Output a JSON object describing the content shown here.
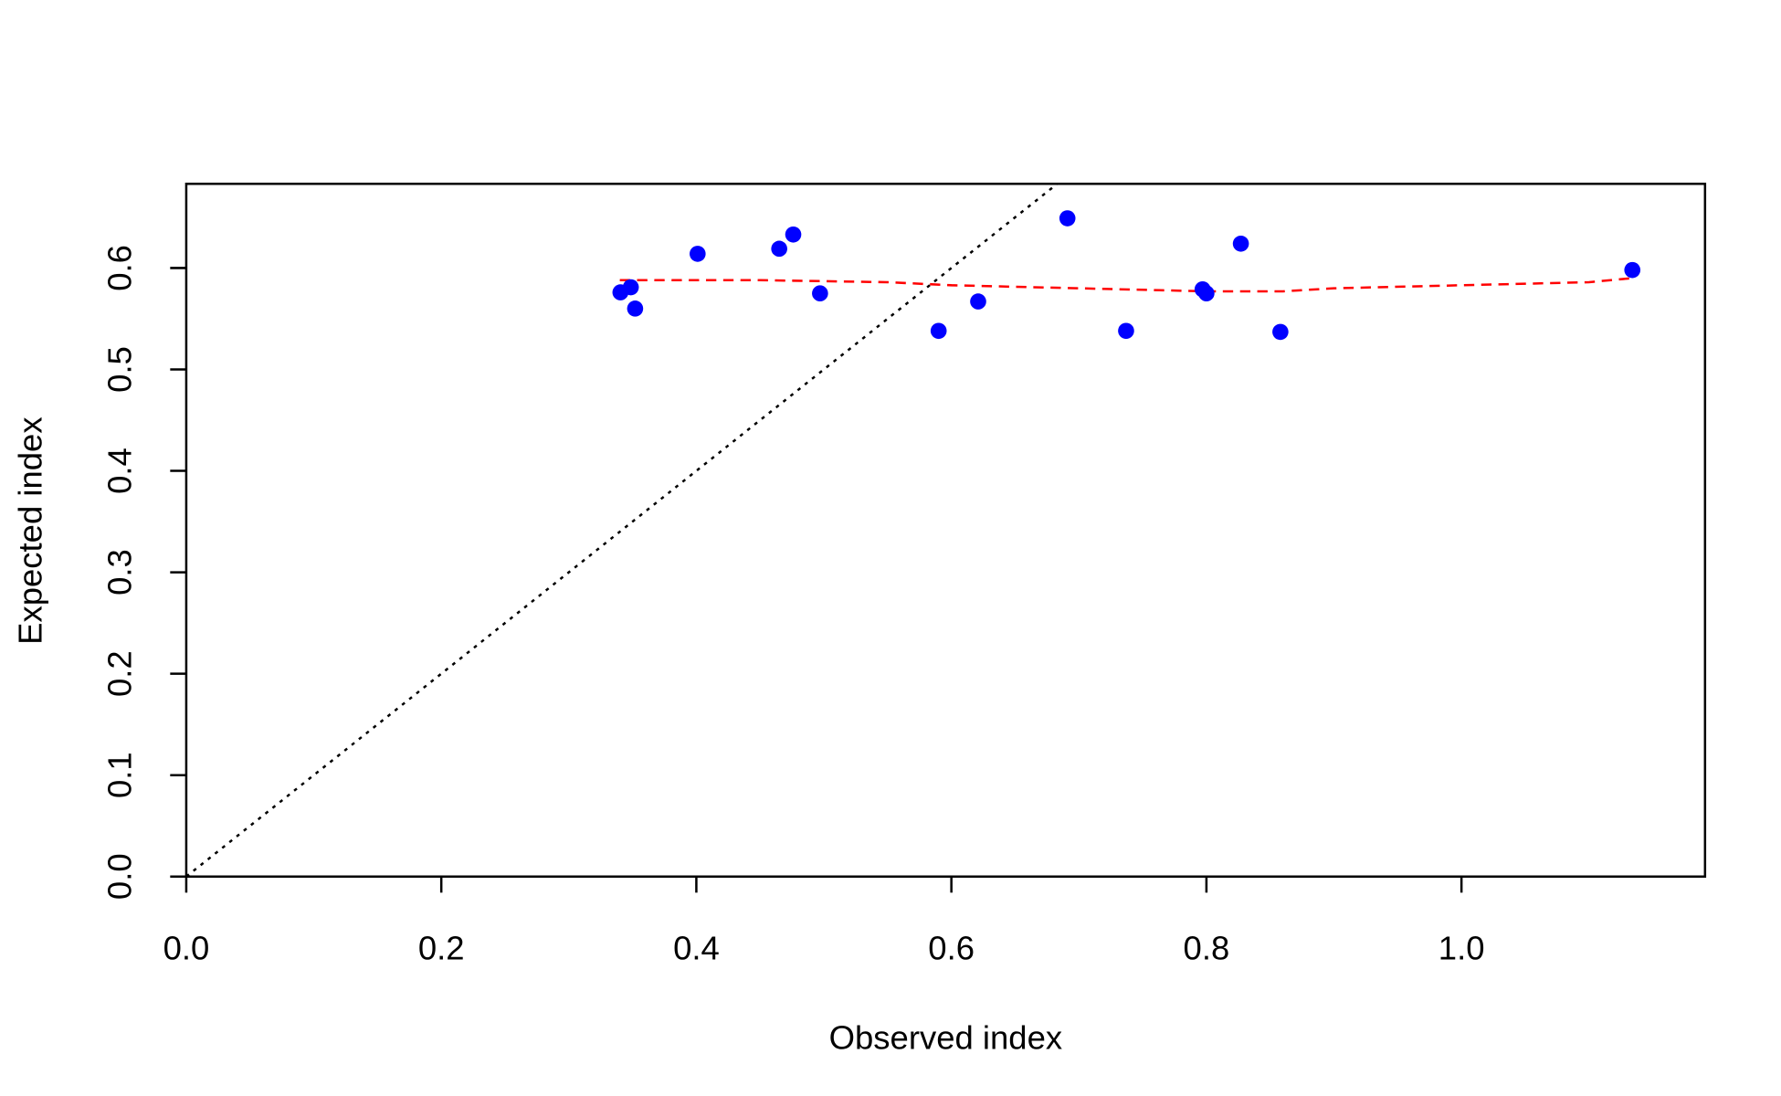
{
  "chart_data": {
    "type": "scatter",
    "x_label": "Observed index",
    "y_label": "Expected index",
    "xlim": [
      0,
      1.191
    ],
    "ylim": [
      0,
      0.683
    ],
    "xticks": [
      {
        "value": 0,
        "label": "0.0"
      },
      0.2,
      0.4,
      0.6,
      0.8,
      {
        "value": 1,
        "label": "1.0"
      }
    ],
    "yticks": [
      {
        "value": 0,
        "label": "0.0"
      },
      0.1,
      0.2,
      0.3,
      0.4,
      0.5,
      0.6
    ],
    "points": {
      "color": "#0000ff",
      "x": [
        0.3405,
        0.3486,
        0.352,
        0.401,
        0.465,
        0.476,
        0.497,
        0.59,
        0.621,
        0.691,
        0.737,
        0.797,
        0.8,
        0.827,
        0.858,
        1.134
      ],
      "y": [
        0.576,
        0.581,
        0.56,
        0.614,
        0.619,
        0.633,
        0.575,
        0.538,
        0.567,
        0.649,
        0.538,
        0.579,
        0.575,
        0.624,
        0.537,
        0.598
      ]
    },
    "smooth": {
      "color": "#ff0000",
      "x": [
        0.34,
        0.45,
        0.55,
        0.6,
        0.7,
        0.8,
        0.86,
        0.9,
        1.0,
        1.1,
        1.134
      ],
      "y": [
        0.588,
        0.588,
        0.586,
        0.583,
        0.58,
        0.577,
        0.577,
        0.58,
        0.583,
        0.586,
        0.59
      ]
    }
  }
}
